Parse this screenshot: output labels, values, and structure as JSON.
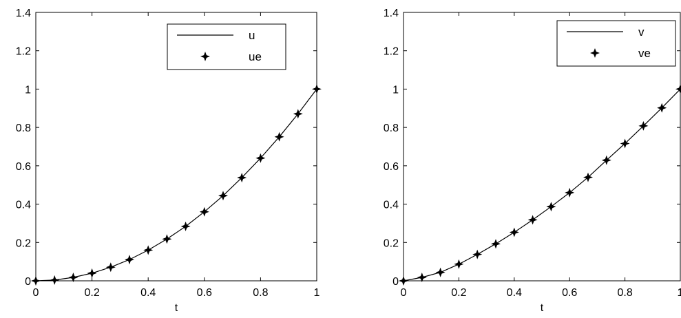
{
  "chart_data": [
    {
      "type": "line",
      "title": "",
      "xlabel": "t",
      "ylabel": "",
      "xlim": [
        0,
        1
      ],
      "ylim": [
        0,
        1.4
      ],
      "xticks": [
        "0",
        "0.2",
        "0.4",
        "0.6",
        "0.8",
        "1"
      ],
      "yticks": [
        "0",
        "0.2",
        "0.4",
        "0.6",
        "0.8",
        "1",
        "1.2",
        "1.4"
      ],
      "grid": false,
      "legend": "top-right",
      "series": [
        {
          "name": "u",
          "style": "solid-line",
          "x": [
            0,
            0.0667,
            0.1333,
            0.2,
            0.2667,
            0.3333,
            0.4,
            0.4667,
            0.5333,
            0.6,
            0.6667,
            0.7333,
            0.8,
            0.8667,
            0.9333,
            1
          ],
          "y": [
            0,
            0.004,
            0.018,
            0.04,
            0.071,
            0.111,
            0.16,
            0.218,
            0.284,
            0.36,
            0.444,
            0.538,
            0.64,
            0.751,
            0.871,
            1
          ]
        },
        {
          "name": "ue",
          "style": "star-markers",
          "x": [
            0,
            0.0667,
            0.1333,
            0.2,
            0.2667,
            0.3333,
            0.4,
            0.4667,
            0.5333,
            0.6,
            0.6667,
            0.7333,
            0.8,
            0.8667,
            0.9333,
            1
          ],
          "y": [
            0,
            0.004,
            0.018,
            0.04,
            0.071,
            0.111,
            0.16,
            0.218,
            0.284,
            0.36,
            0.444,
            0.538,
            0.64,
            0.751,
            0.871,
            1
          ]
        }
      ]
    },
    {
      "type": "line",
      "title": "",
      "xlabel": "t",
      "ylabel": "",
      "xlim": [
        0,
        1
      ],
      "ylim": [
        0,
        1.4
      ],
      "xticks": [
        "0",
        "0.2",
        "0.4",
        "0.6",
        "0.8",
        "1"
      ],
      "yticks": [
        "0",
        "0.2",
        "0.4",
        "0.6",
        "0.8",
        "1",
        "1.2",
        "1.4"
      ],
      "grid": false,
      "legend": "top-right",
      "series": [
        {
          "name": "v",
          "style": "solid-line",
          "x": [
            0,
            0.0667,
            0.1333,
            0.2,
            0.2667,
            0.3333,
            0.4,
            0.4667,
            0.5333,
            0.6,
            0.6667,
            0.7333,
            0.8,
            0.8667,
            0.9333,
            1
          ],
          "y": [
            0,
            0.018,
            0.044,
            0.087,
            0.138,
            0.193,
            0.253,
            0.318,
            0.387,
            0.46,
            0.54,
            0.629,
            0.716,
            0.808,
            0.902,
            1
          ]
        },
        {
          "name": "ve",
          "style": "star-markers",
          "x": [
            0,
            0.0667,
            0.1333,
            0.2,
            0.2667,
            0.3333,
            0.4,
            0.4667,
            0.5333,
            0.6,
            0.6667,
            0.7333,
            0.8,
            0.8667,
            0.9333,
            1
          ],
          "y": [
            0,
            0.018,
            0.044,
            0.087,
            0.138,
            0.193,
            0.253,
            0.318,
            0.387,
            0.46,
            0.54,
            0.629,
            0.716,
            0.808,
            0.902,
            1
          ]
        }
      ]
    }
  ]
}
